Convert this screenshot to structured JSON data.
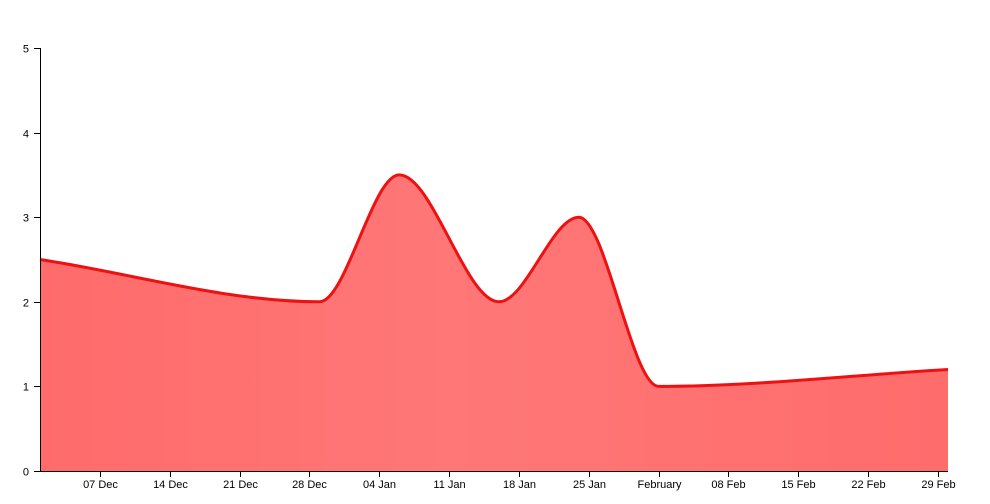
{
  "chart_data": {
    "type": "area",
    "title": "",
    "xlabel": "",
    "ylabel": "",
    "x": [
      "2015-12-01",
      "2015-12-29",
      "2016-01-06",
      "2016-01-16",
      "2016-01-24",
      "2016-02-01",
      "2016-03-01"
    ],
    "series": [
      {
        "values": [
          2.5,
          2.0,
          3.5,
          2.0,
          3.0,
          1.0,
          1.2
        ]
      }
    ],
    "xlim": [
      "2015-12-01",
      "2016-03-01"
    ],
    "ylim": [
      0,
      5
    ],
    "x_ticks": [
      {
        "date": "2015-12-07",
        "label": "07 Dec"
      },
      {
        "date": "2015-12-14",
        "label": "14 Dec"
      },
      {
        "date": "2015-12-21",
        "label": "21 Dec"
      },
      {
        "date": "2015-12-28",
        "label": "28 Dec"
      },
      {
        "date": "2016-01-04",
        "label": "04 Jan"
      },
      {
        "date": "2016-01-11",
        "label": "11 Jan"
      },
      {
        "date": "2016-01-18",
        "label": "18 Jan"
      },
      {
        "date": "2016-01-25",
        "label": "25 Jan"
      },
      {
        "date": "2016-02-01",
        "label": "February"
      },
      {
        "date": "2016-02-08",
        "label": "08 Feb"
      },
      {
        "date": "2016-02-15",
        "label": "15 Feb"
      },
      {
        "date": "2016-02-22",
        "label": "22 Feb"
      },
      {
        "date": "2016-02-29",
        "label": "29 Feb"
      }
    ],
    "y_ticks": [
      0,
      1,
      2,
      3,
      4,
      5
    ],
    "grid": false,
    "legend": "none",
    "colors": {
      "line": "#ee1111",
      "fill_start": "#ff6b6b",
      "fill_mid": "#ff7777",
      "fill_end": "#ff6c6c"
    }
  }
}
